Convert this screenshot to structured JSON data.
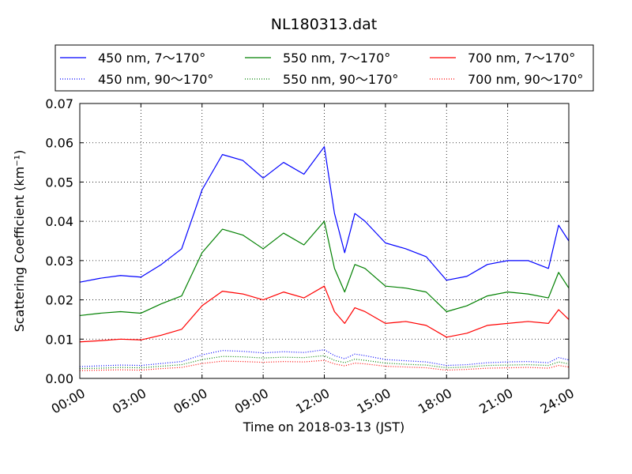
{
  "chart_data": {
    "type": "line",
    "title": "NL180313.dat",
    "xlabel": "Time on 2018-03-13 (JST)",
    "ylabel": "Scattering Coefficient (km⁻¹)",
    "xlim": [
      "00:00",
      "24:00"
    ],
    "ylim": [
      0,
      0.07
    ],
    "grid": true,
    "legend_position": "top",
    "x_ticks": [
      "00:00",
      "03:00",
      "06:00",
      "09:00",
      "12:00",
      "15:00",
      "18:00",
      "21:00",
      "24:00"
    ],
    "y_ticks": [
      "0.00",
      "0.01",
      "0.02",
      "0.03",
      "0.04",
      "0.05",
      "0.06",
      "0.07"
    ],
    "x_hours": [
      0,
      1,
      2,
      3,
      4,
      5,
      6,
      7,
      8,
      9,
      10,
      11,
      12,
      12.5,
      13,
      13.5,
      14,
      15,
      16,
      17,
      18,
      19,
      20,
      21,
      22,
      23,
      23.5,
      24
    ],
    "series": [
      {
        "name": "450 nm, 7～170°",
        "color": "#0000ff",
        "style": "solid",
        "values": [
          0.0245,
          0.0255,
          0.0262,
          0.0258,
          0.029,
          0.033,
          0.048,
          0.057,
          0.0555,
          0.051,
          0.055,
          0.052,
          0.059,
          0.042,
          0.032,
          0.042,
          0.04,
          0.0345,
          0.033,
          0.031,
          0.025,
          0.026,
          0.029,
          0.03,
          0.03,
          0.028,
          0.039,
          0.035
        ]
      },
      {
        "name": "450 nm, 90～170°",
        "color": "#0000ff",
        "style": "dotted",
        "values": [
          0.003,
          0.0032,
          0.0034,
          0.0033,
          0.0038,
          0.0043,
          0.006,
          0.0071,
          0.0069,
          0.0065,
          0.0068,
          0.0066,
          0.0073,
          0.0058,
          0.005,
          0.0062,
          0.0058,
          0.0048,
          0.0045,
          0.0042,
          0.0033,
          0.0035,
          0.004,
          0.0042,
          0.0043,
          0.004,
          0.0053,
          0.0047
        ]
      },
      {
        "name": "550 nm, 7～170°",
        "color": "#008000",
        "style": "solid",
        "values": [
          0.016,
          0.0166,
          0.017,
          0.0166,
          0.019,
          0.021,
          0.032,
          0.038,
          0.0365,
          0.033,
          0.037,
          0.034,
          0.04,
          0.028,
          0.022,
          0.029,
          0.028,
          0.0235,
          0.023,
          0.022,
          0.017,
          0.0185,
          0.021,
          0.022,
          0.0215,
          0.0205,
          0.027,
          0.023
        ]
      },
      {
        "name": "550 nm, 90～170°",
        "color": "#008000",
        "style": "dotted",
        "values": [
          0.0025,
          0.0026,
          0.0028,
          0.0027,
          0.0031,
          0.0035,
          0.0048,
          0.0056,
          0.0055,
          0.0052,
          0.0054,
          0.0053,
          0.0058,
          0.0046,
          0.004,
          0.0049,
          0.0046,
          0.0039,
          0.0036,
          0.0034,
          0.0027,
          0.0029,
          0.0033,
          0.0034,
          0.0035,
          0.0033,
          0.0042,
          0.0037
        ]
      },
      {
        "name": "700 nm, 7～170°",
        "color": "#ff0000",
        "style": "solid",
        "values": [
          0.0093,
          0.0096,
          0.01,
          0.0098,
          0.011,
          0.0125,
          0.0185,
          0.0222,
          0.0215,
          0.02,
          0.022,
          0.0205,
          0.0235,
          0.017,
          0.014,
          0.018,
          0.017,
          0.014,
          0.0145,
          0.0135,
          0.0105,
          0.0115,
          0.0135,
          0.014,
          0.0145,
          0.014,
          0.0175,
          0.015
        ]
      },
      {
        "name": "700 nm, 90～170°",
        "color": "#ff0000",
        "style": "dotted",
        "values": [
          0.002,
          0.0021,
          0.0022,
          0.0021,
          0.0025,
          0.0028,
          0.0038,
          0.0044,
          0.0043,
          0.0041,
          0.0043,
          0.0042,
          0.0046,
          0.0037,
          0.0032,
          0.0039,
          0.0037,
          0.0031,
          0.0029,
          0.0027,
          0.0021,
          0.0023,
          0.0026,
          0.0027,
          0.0028,
          0.0026,
          0.0033,
          0.0029
        ]
      }
    ]
  }
}
